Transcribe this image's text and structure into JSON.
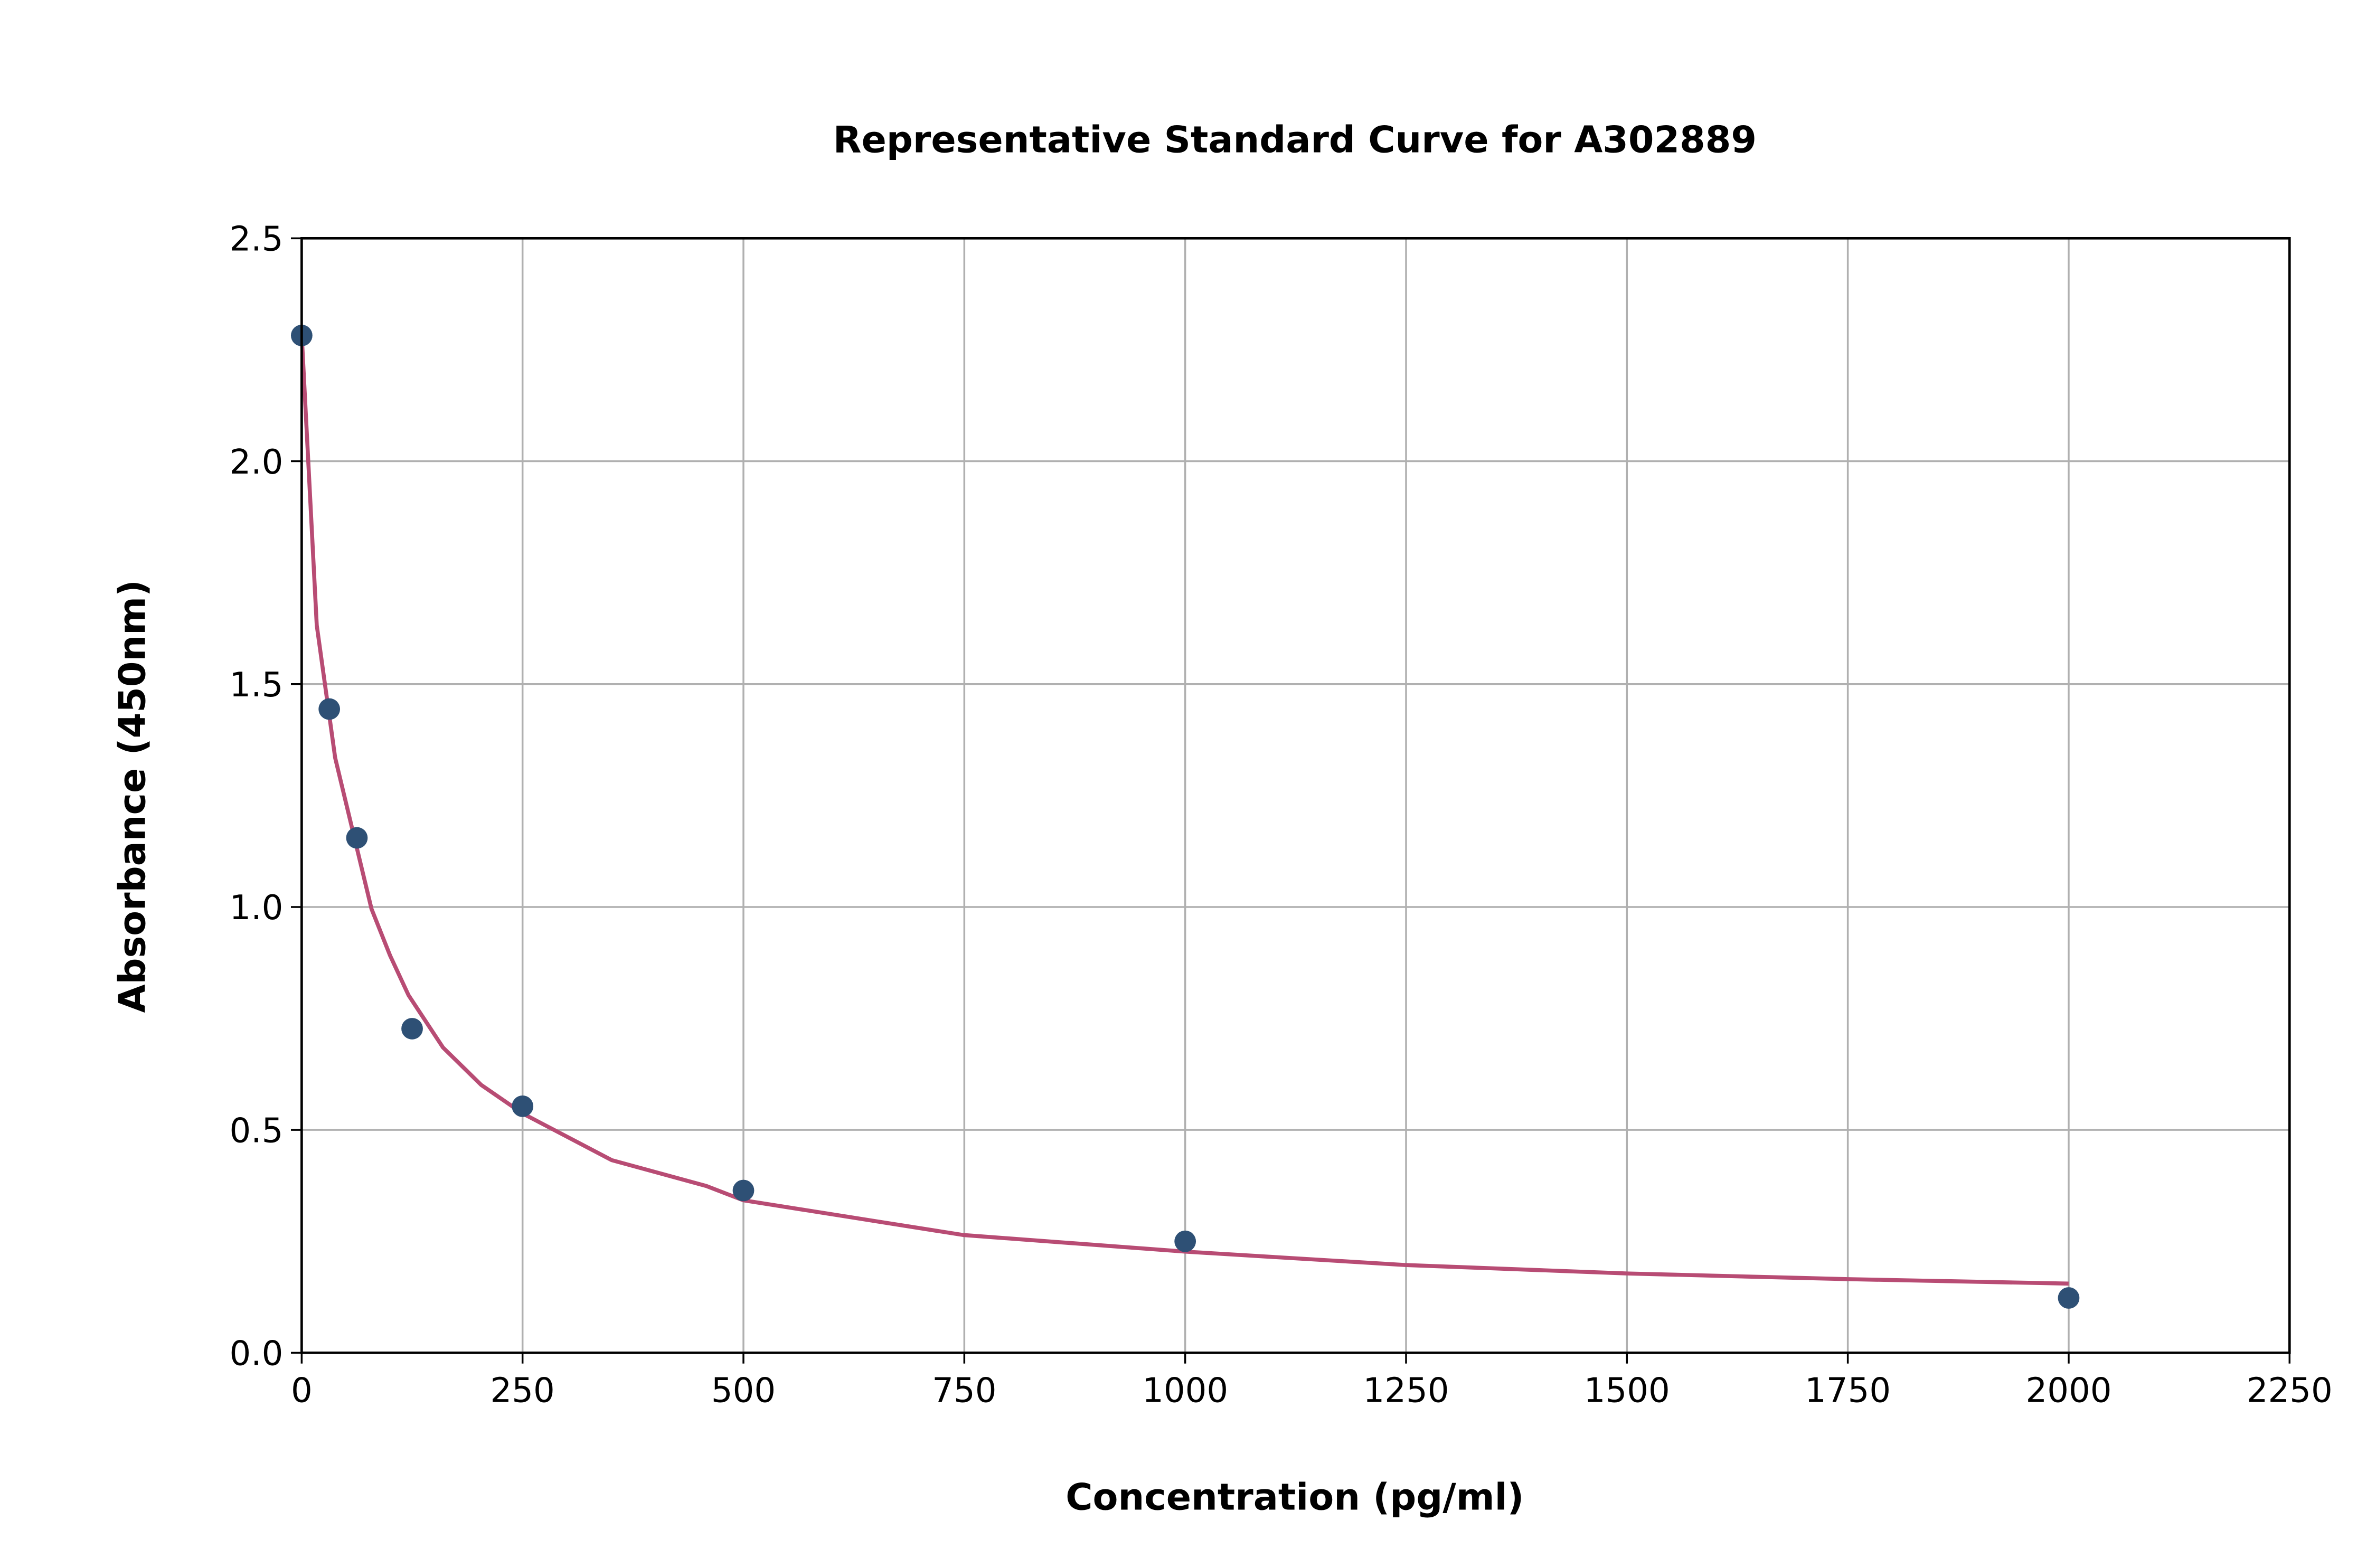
{
  "chart_data": {
    "type": "scatter",
    "title": "Representative Standard Curve for A302889",
    "xlabel": "Concentration (pg/ml)",
    "ylabel": "Absorbance (450nm)",
    "xlim": [
      0,
      2250
    ],
    "ylim": [
      0,
      2.5
    ],
    "xticks": [
      "0",
      "250",
      "500",
      "750",
      "1000",
      "1250",
      "1500",
      "1750",
      "2000",
      "2250"
    ],
    "xtick_values": [
      0,
      250,
      500,
      750,
      1000,
      1250,
      1500,
      1750,
      2000,
      2250
    ],
    "yticks": [
      "0.0",
      "0.5",
      "1.0",
      "1.5",
      "2.0",
      "2.5"
    ],
    "ytick_values": [
      0,
      0.5,
      1.0,
      1.5,
      2.0,
      2.5
    ],
    "grid": true,
    "legend": "none",
    "points": {
      "x": [
        0,
        31.25,
        62.5,
        125,
        250,
        500,
        1000,
        2000
      ],
      "y": [
        2.282,
        1.444,
        1.155,
        0.727,
        0.553,
        0.364,
        0.25,
        0.123
      ],
      "color": "#2e5075"
    },
    "fit_curve": {
      "x": [
        0,
        17,
        38,
        79,
        100,
        121,
        160,
        203,
        250,
        351,
        458,
        500,
        749,
        1000,
        1249,
        1500,
        1750,
        2000
      ],
      "y": [
        2.285,
        1.632,
        1.334,
        0.996,
        0.891,
        0.802,
        0.685,
        0.601,
        0.537,
        0.432,
        0.374,
        0.342,
        0.264,
        0.227,
        0.197,
        0.178,
        0.165,
        0.155
      ],
      "color": "#b84c74"
    }
  }
}
